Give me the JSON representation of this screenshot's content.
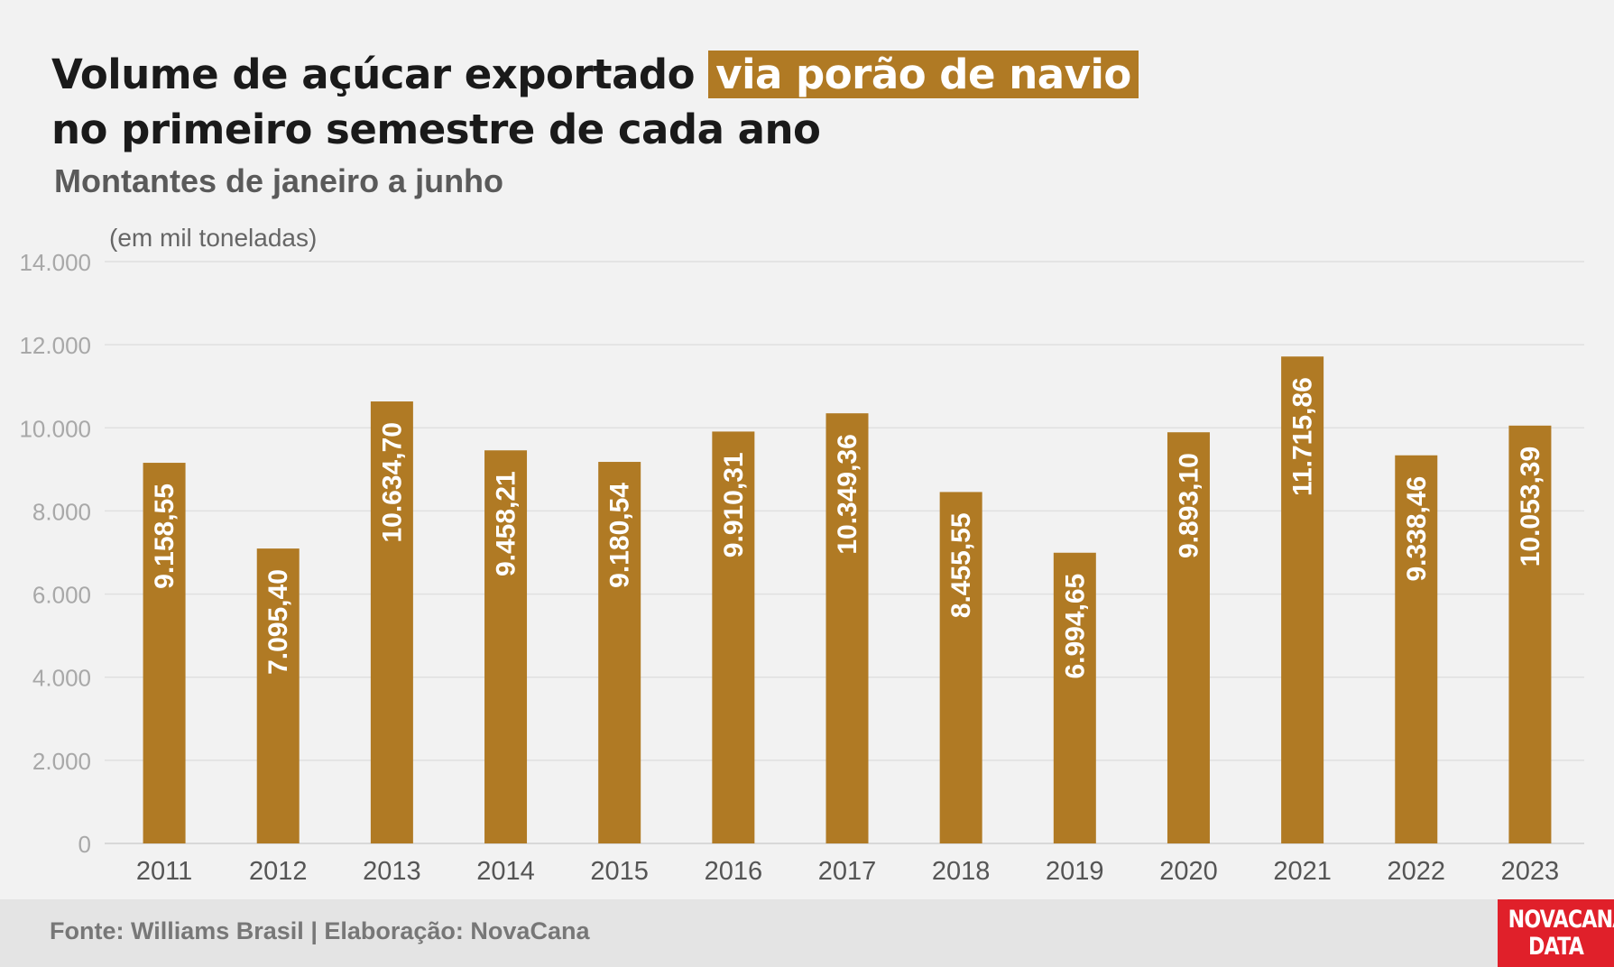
{
  "header": {
    "title_part1": "Volume de açúcar exportado",
    "title_highlight": "via porão de navio",
    "title_line2": "no primeiro semestre de cada ano",
    "subtitle": "Montantes de janeiro a junho",
    "unit_note": "(em mil toneladas)"
  },
  "footer": {
    "source": "Fonte: Williams Brasil | Elaboração: NovaCana",
    "logo_line1": "NOVACANA",
    "logo_line2": "DATA"
  },
  "colors": {
    "bar": "#b07a24",
    "background": "#f2f2f2",
    "grid": "#e0e0e0",
    "logo": "#e0202a"
  },
  "chart_data": {
    "type": "bar",
    "title": "Volume de açúcar exportado via porão de navio no primeiro semestre de cada ano",
    "subtitle": "Montantes de janeiro a junho",
    "xlabel": "",
    "ylabel": "(em mil toneladas)",
    "ylim": [
      0,
      14000
    ],
    "yticks": [
      0,
      2000,
      4000,
      6000,
      8000,
      10000,
      12000,
      14000
    ],
    "ytick_labels": [
      "0",
      "2.000",
      "4.000",
      "6.000",
      "8.000",
      "10.000",
      "12.000",
      "14.000"
    ],
    "grid": true,
    "categories": [
      "2011",
      "2012",
      "2013",
      "2014",
      "2015",
      "2016",
      "2017",
      "2018",
      "2019",
      "2020",
      "2021",
      "2022",
      "2023"
    ],
    "values": [
      9158.55,
      7095.4,
      10634.7,
      9458.21,
      9180.54,
      9910.31,
      10349.36,
      8455.55,
      6994.65,
      9893.1,
      11715.86,
      9338.46,
      10053.39
    ],
    "value_labels": [
      "9.158,55",
      "7.095,40",
      "10.634,70",
      "9.458,21",
      "9.180,54",
      "9.910,31",
      "10.349,36",
      "8.455,55",
      "6.994,65",
      "9.893,10",
      "11.715,86",
      "9.338,46",
      "10.053,39"
    ]
  }
}
